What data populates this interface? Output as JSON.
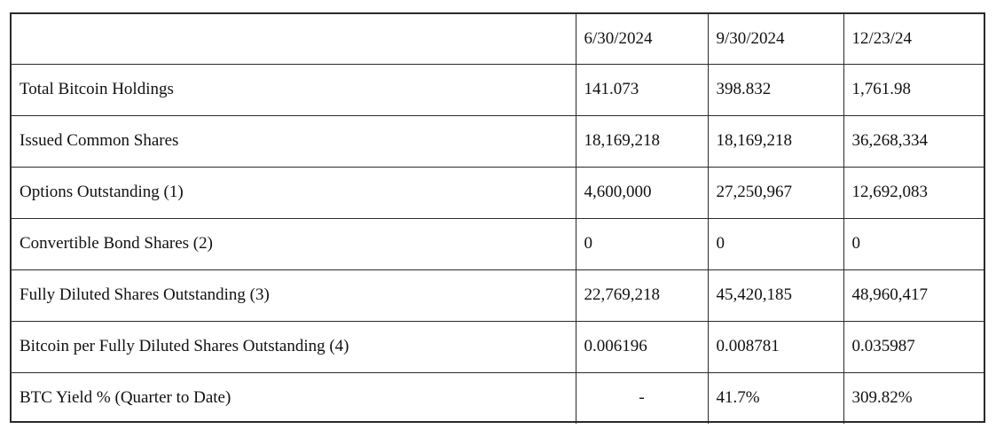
{
  "table": {
    "columns": [
      "",
      "6/30/2024",
      "9/30/2024",
      "12/23/24"
    ],
    "rows": [
      {
        "label": "Total Bitcoin Holdings",
        "values": [
          "141.073",
          "398.832",
          "1,761.98"
        ]
      },
      {
        "label": "Issued Common Shares",
        "values": [
          "18,169,218",
          "18,169,218",
          "36,268,334"
        ]
      },
      {
        "label": "Options Outstanding (1)",
        "values": [
          "4,600,000",
          "27,250,967",
          "12,692,083"
        ]
      },
      {
        "label": "Convertible Bond Shares (2)",
        "values": [
          "0",
          "0",
          "0"
        ]
      },
      {
        "label": "Fully Diluted Shares Outstanding (3)",
        "values": [
          "22,769,218",
          "45,420,185",
          "48,960,417"
        ]
      },
      {
        "label": "Bitcoin per Fully Diluted Shares Outstanding (4)",
        "values": [
          "0.006196",
          "0.008781",
          "0.035987"
        ]
      },
      {
        "label": "BTC Yield % (Quarter to Date)",
        "values": [
          "-",
          "41.7%",
          "309.82%"
        ]
      }
    ]
  }
}
